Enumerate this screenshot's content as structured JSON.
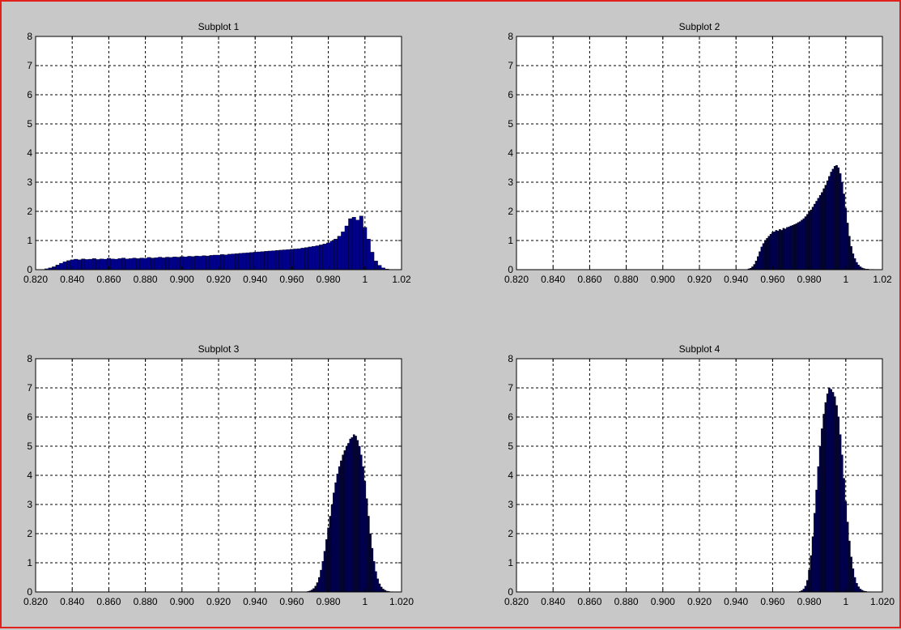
{
  "figure": {
    "background": "#c8c8c8",
    "border_color": "#e0201c",
    "axes_background": "#ffffff",
    "bar_colors": [
      "#00008b",
      "#00004d",
      "#00004d",
      "#00004d"
    ],
    "bar_edge_color": "#000000"
  },
  "chart_data": [
    {
      "type": "bar",
      "title": "Subplot 1",
      "xlabel": "",
      "ylabel": "",
      "xlim": [
        0.82,
        1.02
      ],
      "ylim": [
        0,
        8
      ],
      "xticks": [
        0.82,
        0.84,
        0.86,
        0.88,
        0.9,
        0.92,
        0.94,
        0.96,
        0.98,
        1.0,
        1.02
      ],
      "xtick_labels": [
        "0.820",
        "0.840",
        "0.860",
        "0.880",
        "0.900",
        "0.920",
        "0.940",
        "0.960",
        "0.980",
        "1",
        "1.02"
      ],
      "yticks": [
        0,
        1,
        2,
        3,
        4,
        5,
        6,
        7,
        8
      ],
      "ytick_labels": [
        "0",
        "1",
        "2",
        "3",
        "4",
        "5",
        "6",
        "7",
        "8"
      ],
      "grid": true,
      "bin_width": 0.002,
      "x": [
        0.826,
        0.828,
        0.83,
        0.832,
        0.834,
        0.836,
        0.838,
        0.84,
        0.842,
        0.844,
        0.846,
        0.848,
        0.85,
        0.852,
        0.854,
        0.856,
        0.858,
        0.86,
        0.862,
        0.864,
        0.866,
        0.868,
        0.87,
        0.872,
        0.874,
        0.876,
        0.878,
        0.88,
        0.882,
        0.884,
        0.886,
        0.888,
        0.89,
        0.892,
        0.894,
        0.896,
        0.898,
        0.9,
        0.902,
        0.904,
        0.906,
        0.908,
        0.91,
        0.912,
        0.914,
        0.916,
        0.918,
        0.92,
        0.922,
        0.924,
        0.926,
        0.928,
        0.93,
        0.932,
        0.934,
        0.936,
        0.938,
        0.94,
        0.942,
        0.944,
        0.946,
        0.948,
        0.95,
        0.952,
        0.954,
        0.956,
        0.958,
        0.96,
        0.962,
        0.964,
        0.966,
        0.968,
        0.97,
        0.972,
        0.974,
        0.976,
        0.978,
        0.98,
        0.982,
        0.984,
        0.986,
        0.988,
        0.99,
        0.992,
        0.994,
        0.996,
        0.998,
        1.0,
        1.002,
        1.004,
        1.006,
        1.008,
        1.01,
        1.012
      ],
      "values": [
        0.03,
        0.06,
        0.1,
        0.16,
        0.22,
        0.27,
        0.31,
        0.34,
        0.36,
        0.34,
        0.37,
        0.35,
        0.36,
        0.38,
        0.35,
        0.37,
        0.36,
        0.39,
        0.37,
        0.36,
        0.38,
        0.4,
        0.37,
        0.38,
        0.4,
        0.38,
        0.4,
        0.39,
        0.42,
        0.4,
        0.41,
        0.43,
        0.41,
        0.43,
        0.42,
        0.44,
        0.43,
        0.45,
        0.44,
        0.46,
        0.45,
        0.47,
        0.46,
        0.48,
        0.47,
        0.49,
        0.5,
        0.5,
        0.52,
        0.51,
        0.53,
        0.54,
        0.55,
        0.56,
        0.57,
        0.58,
        0.59,
        0.6,
        0.61,
        0.62,
        0.63,
        0.64,
        0.65,
        0.66,
        0.67,
        0.68,
        0.69,
        0.7,
        0.71,
        0.72,
        0.74,
        0.76,
        0.78,
        0.8,
        0.82,
        0.85,
        0.88,
        0.92,
        0.98,
        1.05,
        1.15,
        1.3,
        1.5,
        1.75,
        1.8,
        1.7,
        1.84,
        1.45,
        1.05,
        0.6,
        0.3,
        0.15,
        0.06,
        0.02
      ]
    },
    {
      "type": "bar",
      "title": "Subplot 2",
      "xlabel": "",
      "ylabel": "",
      "xlim": [
        0.82,
        1.02
      ],
      "ylim": [
        0,
        8
      ],
      "xticks": [
        0.82,
        0.84,
        0.86,
        0.88,
        0.9,
        0.92,
        0.94,
        0.96,
        0.98,
        1.0,
        1.02
      ],
      "xtick_labels": [
        "0.820",
        "0.840",
        "0.860",
        "0.880",
        "0.900",
        "0.920",
        "0.940",
        "0.960",
        "0.980",
        "1",
        "1.02"
      ],
      "yticks": [
        0,
        1,
        2,
        3,
        4,
        5,
        6,
        7,
        8
      ],
      "ytick_labels": [
        "0",
        "1",
        "2",
        "3",
        "4",
        "5",
        "6",
        "7",
        "8"
      ],
      "grid": true,
      "bin_width": 0.001,
      "x": [
        0.947,
        0.948,
        0.949,
        0.95,
        0.951,
        0.952,
        0.953,
        0.954,
        0.955,
        0.956,
        0.957,
        0.958,
        0.959,
        0.96,
        0.961,
        0.962,
        0.963,
        0.964,
        0.965,
        0.966,
        0.967,
        0.968,
        0.969,
        0.97,
        0.971,
        0.972,
        0.973,
        0.974,
        0.975,
        0.976,
        0.977,
        0.978,
        0.979,
        0.98,
        0.981,
        0.982,
        0.983,
        0.984,
        0.985,
        0.986,
        0.987,
        0.988,
        0.989,
        0.99,
        0.991,
        0.992,
        0.993,
        0.994,
        0.995,
        0.996,
        0.997,
        0.998,
        0.999,
        1.0,
        1.001,
        1.002,
        1.003,
        1.004,
        1.005,
        1.006,
        1.007,
        1.008,
        1.009,
        1.01,
        1.011,
        1.012,
        1.013,
        1.014,
        1.015
      ],
      "values": [
        0.03,
        0.05,
        0.1,
        0.18,
        0.3,
        0.45,
        0.62,
        0.78,
        0.9,
        1.0,
        1.08,
        1.15,
        1.22,
        1.28,
        1.3,
        1.35,
        1.33,
        1.38,
        1.35,
        1.42,
        1.4,
        1.45,
        1.47,
        1.5,
        1.52,
        1.55,
        1.58,
        1.62,
        1.65,
        1.7,
        1.75,
        1.82,
        1.9,
        1.98,
        2.05,
        2.15,
        2.25,
        2.35,
        2.45,
        2.55,
        2.65,
        2.78,
        2.9,
        3.05,
        3.2,
        3.35,
        3.45,
        3.55,
        3.58,
        3.5,
        3.3,
        3.0,
        2.6,
        2.1,
        1.6,
        1.15,
        0.8,
        0.55,
        0.38,
        0.25,
        0.16,
        0.1,
        0.06,
        0.04,
        0.02,
        0.02,
        0.01,
        0.01,
        0.01
      ]
    },
    {
      "type": "bar",
      "title": "Subplot 3",
      "xlabel": "",
      "ylabel": "",
      "xlim": [
        0.82,
        1.02
      ],
      "ylim": [
        0,
        8
      ],
      "xticks": [
        0.82,
        0.84,
        0.86,
        0.88,
        0.9,
        0.92,
        0.94,
        0.96,
        0.98,
        1.0,
        1.02
      ],
      "xtick_labels": [
        "0.820",
        "0.840",
        "0.860",
        "0.880",
        "0.900",
        "0.920",
        "0.940",
        "0.960",
        "0.980",
        "1",
        "1.020"
      ],
      "yticks": [
        0,
        1,
        2,
        3,
        4,
        5,
        6,
        7,
        8
      ],
      "ytick_labels": [
        "0",
        "1",
        "2",
        "3",
        "4",
        "5",
        "6",
        "7",
        "8"
      ],
      "grid": true,
      "bin_width": 0.001,
      "x": [
        0.969,
        0.97,
        0.971,
        0.972,
        0.973,
        0.974,
        0.975,
        0.976,
        0.977,
        0.978,
        0.979,
        0.98,
        0.981,
        0.982,
        0.983,
        0.984,
        0.985,
        0.986,
        0.987,
        0.988,
        0.989,
        0.99,
        0.991,
        0.992,
        0.993,
        0.994,
        0.995,
        0.996,
        0.997,
        0.998,
        0.999,
        1.0,
        1.001,
        1.002,
        1.003,
        1.004,
        1.005,
        1.006,
        1.007,
        1.008,
        1.009,
        1.01,
        1.011,
        1.012,
        1.013,
        1.014,
        1.015
      ],
      "values": [
        0.02,
        0.04,
        0.07,
        0.12,
        0.2,
        0.32,
        0.5,
        0.75,
        1.05,
        1.4,
        1.8,
        2.2,
        2.6,
        3.0,
        3.4,
        3.75,
        4.05,
        4.3,
        4.5,
        4.7,
        4.85,
        5.0,
        5.1,
        5.25,
        5.3,
        5.4,
        5.35,
        5.2,
        5.0,
        4.7,
        4.3,
        3.8,
        3.2,
        2.6,
        2.0,
        1.5,
        1.05,
        0.7,
        0.45,
        0.28,
        0.17,
        0.1,
        0.06,
        0.03,
        0.02,
        0.01,
        0.01
      ]
    },
    {
      "type": "bar",
      "title": "Subplot 4",
      "xlabel": "",
      "ylabel": "",
      "xlim": [
        0.82,
        1.02
      ],
      "ylim": [
        0,
        8
      ],
      "xticks": [
        0.82,
        0.84,
        0.86,
        0.88,
        0.9,
        0.92,
        0.94,
        0.96,
        0.98,
        1.0,
        1.02
      ],
      "xtick_labels": [
        "0.820",
        "0.840",
        "0.860",
        "0.880",
        "0.900",
        "0.920",
        "0.940",
        "0.960",
        "0.980",
        "1",
        "1.020"
      ],
      "yticks": [
        0,
        1,
        2,
        3,
        4,
        5,
        6,
        7,
        8
      ],
      "ytick_labels": [
        "0",
        "1",
        "2",
        "3",
        "4",
        "5",
        "6",
        "7",
        "8"
      ],
      "grid": true,
      "bin_width": 0.001,
      "x": [
        0.975,
        0.976,
        0.977,
        0.978,
        0.979,
        0.98,
        0.981,
        0.982,
        0.983,
        0.984,
        0.985,
        0.986,
        0.987,
        0.988,
        0.989,
        0.99,
        0.991,
        0.992,
        0.993,
        0.994,
        0.995,
        0.996,
        0.997,
        0.998,
        0.999,
        1.0,
        1.001,
        1.002,
        1.003,
        1.004,
        1.005,
        1.006,
        1.007,
        1.008,
        1.009,
        1.01,
        1.011,
        1.012,
        1.013
      ],
      "values": [
        0.02,
        0.05,
        0.1,
        0.2,
        0.4,
        0.75,
        1.25,
        1.9,
        2.7,
        3.5,
        4.3,
        5.0,
        5.6,
        6.1,
        6.5,
        6.8,
        7.0,
        6.95,
        6.85,
        6.7,
        6.4,
        6.0,
        5.4,
        4.7,
        3.9,
        3.1,
        2.4,
        1.75,
        1.2,
        0.8,
        0.5,
        0.3,
        0.18,
        0.1,
        0.06,
        0.03,
        0.02,
        0.01,
        0.01
      ]
    }
  ]
}
